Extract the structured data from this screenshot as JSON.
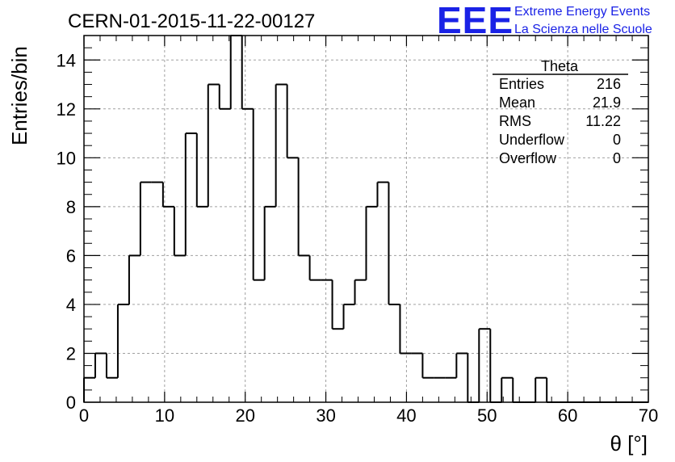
{
  "header": {
    "run_title": "CERN-01-2015-11-22-00127",
    "logo_text": "EEE",
    "logo_line1": "Extreme Energy Events",
    "logo_line2": "La Scienza nelle Scuole"
  },
  "stats": {
    "name": "Theta",
    "rows": [
      {
        "label": "Entries",
        "value": "216"
      },
      {
        "label": "Mean",
        "value": "21.9"
      },
      {
        "label": "RMS",
        "value": "11.22"
      },
      {
        "label": "Underflow",
        "value": "0"
      },
      {
        "label": "Overflow",
        "value": "0"
      }
    ]
  },
  "colors": {
    "logo": "#1a22e6",
    "line": "#000000",
    "grid": "#a0a0a0"
  },
  "chart_data": {
    "type": "bar",
    "style": "step-histogram",
    "title": "CERN-01-2015-11-22-00127",
    "xlabel": "θ [°]",
    "ylabel": "Entries/bin",
    "xlim": [
      0,
      70
    ],
    "ylim": [
      0,
      15
    ],
    "bin_width": 1.4,
    "bin_start": 0,
    "values": [
      1,
      2,
      1,
      4,
      6,
      9,
      9,
      8,
      6,
      11,
      8,
      13,
      12,
      15,
      12,
      5,
      8,
      13,
      10,
      6,
      5,
      5,
      3,
      4,
      5,
      8,
      9,
      4,
      2,
      2,
      1,
      1,
      1,
      2,
      0,
      3,
      0,
      1,
      0,
      0,
      1,
      0,
      0,
      0,
      0,
      0,
      0,
      0,
      0,
      0
    ],
    "x_ticks": [
      "0",
      "10",
      "20",
      "30",
      "40",
      "50",
      "60",
      "70"
    ],
    "y_ticks": [
      "0",
      "2",
      "4",
      "6",
      "8",
      "10",
      "12",
      "14"
    ],
    "grid": true,
    "legend": "stats box top-right"
  }
}
